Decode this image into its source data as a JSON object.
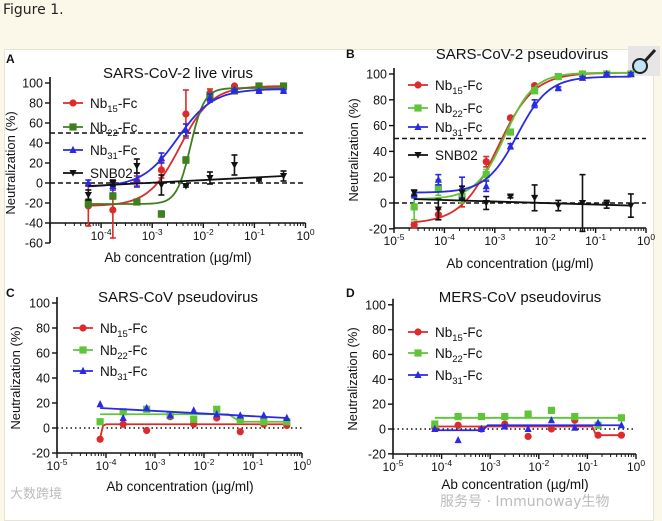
{
  "caption": "Figure 1.",
  "watermarks": {
    "left": "大数跨境",
    "right": "服务号 · Immunoway生物"
  },
  "magnifier_icon": "magnifier-icon",
  "colors": {
    "nb15": "#dd2a2a",
    "nb22_live": "#3f7f1f",
    "nb22": "#5fc438",
    "nb31": "#2a2ae6",
    "snb02": "#111111"
  },
  "chart_data": [
    {
      "panel": "A",
      "type": "line",
      "title": "SARS-CoV-2 live virus",
      "xlabel": "Ab concentration (µg/ml)",
      "ylabel": "Neutralization (%)",
      "xscale": "log10",
      "xlim": [
        -5,
        0
      ],
      "ylim": [
        -60,
        100
      ],
      "yticks": [
        "-60",
        "-40",
        "-20",
        "0",
        "20",
        "40",
        "60",
        "80",
        "100"
      ],
      "xticks": [
        {
          "base": "10",
          "exp": "-4"
        },
        {
          "base": "10",
          "exp": "-3"
        },
        {
          "base": "10",
          "exp": "-2"
        },
        {
          "base": "10",
          "exp": "-1"
        },
        {
          "base": "10",
          "exp": "0"
        }
      ],
      "reference_lines": [
        {
          "y": 50,
          "style": "dashed"
        },
        {
          "y": 0,
          "style": "dashed"
        }
      ],
      "legend": "top-left",
      "x_log10": [
        -4.25,
        -3.77,
        -3.3,
        -2.82,
        -2.34,
        -1.87,
        -1.39,
        -0.91,
        -0.43
      ],
      "series": [
        {
          "name": "Nb15-Fc",
          "label": [
            "Nb",
            "15",
            "-Fc"
          ],
          "marker": "circle",
          "color": "#dd2a2a",
          "values": [
            -23,
            -27,
            2,
            13,
            69,
            90,
            97,
            97,
            97
          ],
          "err": [
            20,
            28,
            5,
            8,
            24,
            4,
            1,
            1,
            1
          ],
          "fit": {
            "bottom": -23,
            "top": 97,
            "log_ec50": -2.45,
            "hill": 1.4
          }
        },
        {
          "name": "Nb22-Fc",
          "label": [
            "Nb",
            "22",
            "-Fc"
          ],
          "marker": "square",
          "color": "#3f7f1f",
          "values": [
            -20,
            -13,
            -19,
            -31,
            23,
            87,
            92,
            97,
            97
          ],
          "err": [
            4,
            3,
            2,
            3,
            3,
            3,
            1,
            1,
            1
          ],
          "fit": {
            "bottom": -21,
            "top": 95,
            "log_ec50": -2.25,
            "hill": 3.2
          }
        },
        {
          "name": "Nb31-Fc",
          "label": [
            "Nb",
            "31",
            "-Fc"
          ],
          "marker": "triangle",
          "color": "#2a2ae6",
          "values": [
            0,
            -3,
            3,
            25,
            53,
            85,
            93,
            92,
            92
          ],
          "err": [
            3,
            4,
            7,
            5,
            6,
            4,
            1,
            1,
            1
          ],
          "fit": {
            "bottom": -4,
            "top": 94,
            "log_ec50": -2.5,
            "hill": 1.25
          }
        },
        {
          "name": "SNB02",
          "label": [
            "SNB02",
            "",
            ""
          ],
          "marker": "triangle-down",
          "color": "#111111",
          "values": [
            -12,
            0,
            17,
            -2,
            -3,
            5,
            18,
            3,
            7
          ],
          "err": [
            5,
            3,
            7,
            10,
            1,
            6,
            10,
            1,
            5
          ],
          "fit": {
            "line": [
              [
                -4.25,
                -3
              ],
              [
                -0.43,
                7
              ]
            ]
          }
        }
      ]
    },
    {
      "panel": "B",
      "type": "line",
      "title": "SARS-CoV-2 pseudovirus",
      "xlabel": "Ab concentration (µg/ml)",
      "ylabel": "Neutralization (%)",
      "xscale": "log10",
      "xlim": [
        -5,
        0
      ],
      "ylim": [
        -20,
        100
      ],
      "yticks": [
        "-20",
        "0",
        "20",
        "40",
        "60",
        "80",
        "100"
      ],
      "xticks": [
        {
          "base": "10",
          "exp": "-5"
        },
        {
          "base": "10",
          "exp": "-4"
        },
        {
          "base": "10",
          "exp": "-3"
        },
        {
          "base": "10",
          "exp": "-2"
        },
        {
          "base": "10",
          "exp": "-1"
        },
        {
          "base": "10",
          "exp": "0"
        }
      ],
      "reference_lines": [
        {
          "y": 50,
          "style": "dashed"
        },
        {
          "y": 0,
          "style": "dashed"
        }
      ],
      "legend": "top-left",
      "x_log10": [
        -4.6,
        -4.12,
        -3.65,
        -3.17,
        -2.69,
        -2.21,
        -1.74,
        -1.26,
        -0.78,
        -0.3
      ],
      "series": [
        {
          "name": "Nb15-Fc",
          "label": [
            "Nb",
            "15",
            "-Fc"
          ],
          "marker": "circle",
          "color": "#dd2a2a",
          "values": [
            -17,
            -9,
            5,
            32,
            66,
            91,
            98,
            100,
            100,
            100
          ],
          "err": [
            2,
            4,
            8,
            4,
            1,
            1,
            1,
            1,
            1,
            1
          ],
          "fit": {
            "bottom": -16,
            "top": 101,
            "log_ec50": -2.95,
            "hill": 1.2
          }
        },
        {
          "name": "Nb22-Fc",
          "label": [
            "Nb",
            "22",
            "-Fc"
          ],
          "marker": "square",
          "color": "#5fc438",
          "values": [
            -3,
            12,
            5,
            22,
            55,
            87,
            98,
            100,
            100,
            100
          ],
          "err": [
            10,
            6,
            5,
            4,
            2,
            2,
            1,
            1,
            1,
            1
          ],
          "fit": {
            "bottom": 3,
            "top": 101,
            "log_ec50": -2.8,
            "hill": 1.5
          }
        },
        {
          "name": "Nb31-Fc",
          "label": [
            "Nb",
            "31",
            "-Fc"
          ],
          "marker": "triangle",
          "color": "#2a2ae6",
          "values": [
            7,
            18,
            12,
            13,
            44,
            77,
            89,
            97,
            100,
            100
          ],
          "err": [
            3,
            4,
            8,
            4,
            2,
            3,
            1,
            1,
            1,
            1
          ],
          "fit": {
            "bottom": 8,
            "top": 98,
            "log_ec50": -2.55,
            "hill": 1.4
          }
        },
        {
          "name": "SNB02",
          "label": [
            "SNB02",
            "",
            ""
          ],
          "marker": "triangle-down",
          "color": "#111111",
          "values": [
            8,
            -5,
            8,
            0,
            5,
            4,
            -2,
            0,
            -1,
            -2
          ],
          "err": [
            2,
            8,
            5,
            5,
            1,
            10,
            4,
            22,
            3,
            9
          ],
          "fit": {
            "line": [
              [
                -4.6,
                3
              ],
              [
                -0.3,
                -2
              ]
            ]
          }
        }
      ]
    },
    {
      "panel": "C",
      "type": "line",
      "title": "SARS-CoV pseudovirus",
      "xlabel": "Ab concentration (µg/ml)",
      "ylabel": "Neutralization (%)",
      "xscale": "log10",
      "xlim": [
        -5,
        0
      ],
      "ylim": [
        -20,
        100
      ],
      "yticks": [
        "-20",
        "0",
        "20",
        "40",
        "60",
        "80",
        "100"
      ],
      "xticks": [
        {
          "base": "10",
          "exp": "-5"
        },
        {
          "base": "10",
          "exp": "-4"
        },
        {
          "base": "10",
          "exp": "-3"
        },
        {
          "base": "10",
          "exp": "-2"
        },
        {
          "base": "10",
          "exp": "-1"
        },
        {
          "base": "10",
          "exp": "0"
        }
      ],
      "reference_lines": [
        {
          "y": 0,
          "style": "dotted"
        }
      ],
      "legend": "top-left",
      "x_log10": [
        -4.12,
        -3.65,
        -3.17,
        -2.69,
        -2.21,
        -1.74,
        -1.26,
        -0.78,
        -0.31
      ],
      "series": [
        {
          "name": "Nb15-Fc",
          "label": [
            "Nb",
            "15",
            "-Fc"
          ],
          "marker": "circle",
          "color": "#dd2a2a",
          "values": [
            -9,
            3,
            -2,
            9,
            3,
            8,
            -3,
            3,
            2
          ],
          "fit": {
            "line": [
              [
                -4.12,
                -8
              ],
              [
                -4.06,
                2
              ],
              [
                -4.0,
                3
              ],
              [
                -0.31,
                3
              ]
            ]
          }
        },
        {
          "name": "Nb22-Fc",
          "label": [
            "Nb",
            "22",
            "-Fc"
          ],
          "marker": "square",
          "color": "#5fc438",
          "values": [
            5,
            13,
            15,
            10,
            7,
            15,
            6,
            5,
            5
          ],
          "fit": {
            "line": [
              [
                -4.12,
                11
              ],
              [
                -1.5,
                11
              ],
              [
                -1.26,
                5
              ],
              [
                -0.31,
                5
              ]
            ]
          }
        },
        {
          "name": "Nb31-Fc",
          "label": [
            "Nb",
            "31",
            "-Fc"
          ],
          "marker": "triangle",
          "color": "#2a2ae6",
          "values": [
            19,
            8,
            16,
            10,
            14,
            11,
            10,
            10,
            8
          ],
          "fit": {
            "line": [
              [
                -4.12,
                16
              ],
              [
                -0.31,
                8
              ]
            ]
          }
        }
      ]
    },
    {
      "panel": "D",
      "type": "line",
      "title": "MERS-CoV pseudovirus",
      "xlabel": "Ab concentration (µg/ml)",
      "ylabel": "Neutralization (%)",
      "xscale": "log10",
      "xlim": [
        -5,
        0
      ],
      "ylim": [
        -20,
        100
      ],
      "yticks": [
        "-20",
        "0",
        "20",
        "40",
        "60",
        "80",
        "100"
      ],
      "xticks": [
        {
          "base": "10",
          "exp": "-5"
        },
        {
          "base": "10",
          "exp": "-4"
        },
        {
          "base": "10",
          "exp": "-3"
        },
        {
          "base": "10",
          "exp": "-2"
        },
        {
          "base": "10",
          "exp": "-1"
        },
        {
          "base": "10",
          "exp": "0"
        }
      ],
      "reference_lines": [
        {
          "y": 0,
          "style": "dotted"
        }
      ],
      "legend": "top-left",
      "x_log10": [
        -4.14,
        -3.66,
        -3.18,
        -2.7,
        -2.22,
        -1.74,
        -1.26,
        -0.78,
        -0.3
      ],
      "series": [
        {
          "name": "Nb15-Fc",
          "label": [
            "Nb",
            "15",
            "-Fc"
          ],
          "marker": "circle",
          "color": "#dd2a2a",
          "values": [
            1,
            3,
            0,
            4,
            -6,
            0,
            7,
            -5,
            -5
          ],
          "fit": {
            "line": [
              [
                -4.14,
                2
              ],
              [
                -0.9,
                2
              ],
              [
                -0.82,
                -5
              ],
              [
                -0.3,
                -5
              ]
            ]
          }
        },
        {
          "name": "Nb22-Fc",
          "label": [
            "Nb",
            "22",
            "-Fc"
          ],
          "marker": "square",
          "color": "#5fc438",
          "values": [
            4,
            10,
            10,
            10,
            12,
            15,
            10,
            3,
            9
          ],
          "fit": {
            "line": [
              [
                -4.14,
                9
              ],
              [
                -0.3,
                9
              ]
            ]
          }
        },
        {
          "name": "Nb31-Fc",
          "label": [
            "Nb",
            "31",
            "-Fc"
          ],
          "marker": "triangle",
          "color": "#2a2ae6",
          "values": [
            0,
            -9,
            0,
            2,
            0,
            7,
            1,
            5,
            3
          ],
          "fit": {
            "line": [
              [
                -4.14,
                -1
              ],
              [
                -3.15,
                -1
              ],
              [
                -3.05,
                3
              ],
              [
                -0.3,
                3
              ]
            ]
          }
        }
      ]
    }
  ]
}
